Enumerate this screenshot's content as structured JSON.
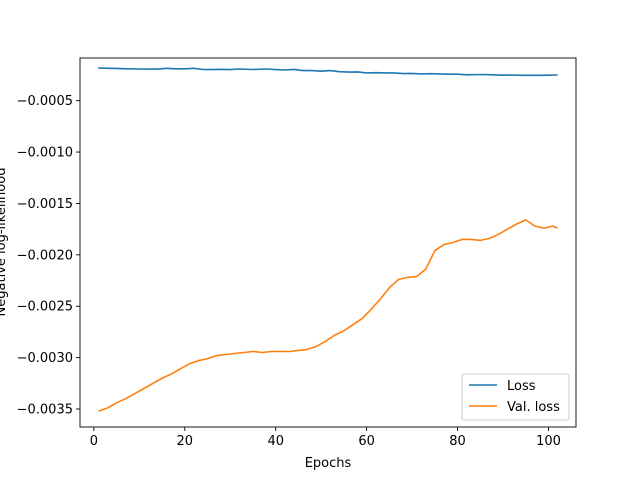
{
  "chart_data": {
    "type": "line",
    "title": "",
    "xlabel": "Epochs",
    "ylabel": "Negative log-likelihood",
    "xlim": [
      -3.05,
      106.05
    ],
    "ylim": [
      -0.003675,
      -8.5e-05
    ],
    "xticks": [
      0,
      20,
      40,
      60,
      80,
      100
    ],
    "xtick_labels": [
      "0",
      "20",
      "40",
      "60",
      "80",
      "100"
    ],
    "yticks": [
      -0.0035,
      -0.003,
      -0.0025,
      -0.002,
      -0.0015,
      -0.001,
      -0.0005
    ],
    "ytick_labels": [
      "−0.0035",
      "−0.0030",
      "−0.0025",
      "−0.0020",
      "−0.0015",
      "−0.0010",
      "−0.0005"
    ],
    "grid": false,
    "legend": {
      "position": "lower-right",
      "entries": [
        "Loss",
        "Val. loss"
      ]
    },
    "series": [
      {
        "name": "Loss",
        "color": "#1f77b4",
        "points": [
          [
            1,
            -0.000183
          ],
          [
            5,
            -0.000186
          ],
          [
            7,
            -0.00019
          ],
          [
            10,
            -0.000192
          ],
          [
            12,
            -0.000193
          ],
          [
            14,
            -0.000193
          ],
          [
            16,
            -0.000185
          ],
          [
            18,
            -0.00019
          ],
          [
            20,
            -0.00019
          ],
          [
            22,
            -0.000185
          ],
          [
            24,
            -0.000197
          ],
          [
            26,
            -0.000198
          ],
          [
            28,
            -0.000195
          ],
          [
            30,
            -0.000198
          ],
          [
            32,
            -0.000192
          ],
          [
            35,
            -0.000197
          ],
          [
            38,
            -0.000192
          ],
          [
            40,
            -0.000198
          ],
          [
            42,
            -0.000202
          ],
          [
            44,
            -0.000196
          ],
          [
            46,
            -0.000208
          ],
          [
            48,
            -0.000208
          ],
          [
            50,
            -0.000213
          ],
          [
            52,
            -0.000208
          ],
          [
            54,
            -0.000218
          ],
          [
            56,
            -0.000222
          ],
          [
            58,
            -0.00022
          ],
          [
            60,
            -0.00023
          ],
          [
            62,
            -0.000228
          ],
          [
            64,
            -0.00023
          ],
          [
            66,
            -0.00023
          ],
          [
            68,
            -0.000237
          ],
          [
            70,
            -0.000235
          ],
          [
            72,
            -0.00024
          ],
          [
            74,
            -0.000238
          ],
          [
            76,
            -0.00024
          ],
          [
            78,
            -0.000243
          ],
          [
            80,
            -0.000243
          ],
          [
            82,
            -0.000248
          ],
          [
            85,
            -0.000246
          ],
          [
            88,
            -0.000248
          ],
          [
            90,
            -0.000252
          ],
          [
            92,
            -0.00025
          ],
          [
            94,
            -0.000253
          ],
          [
            96,
            -0.000253
          ],
          [
            98,
            -0.000253
          ],
          [
            100,
            -0.000252
          ],
          [
            102,
            -0.00025
          ]
        ]
      },
      {
        "name": "Val. loss",
        "color": "#ff7f0e",
        "points": [
          [
            1,
            -0.00352
          ],
          [
            3,
            -0.00349
          ],
          [
            5,
            -0.00344
          ],
          [
            7,
            -0.0034
          ],
          [
            9,
            -0.00335
          ],
          [
            11,
            -0.0033
          ],
          [
            13,
            -0.00325
          ],
          [
            15,
            -0.0032
          ],
          [
            17,
            -0.00316
          ],
          [
            19,
            -0.00311
          ],
          [
            21,
            -0.00306
          ],
          [
            23,
            -0.00303
          ],
          [
            25,
            -0.00301
          ],
          [
            27,
            -0.00298
          ],
          [
            29,
            -0.00297
          ],
          [
            31,
            -0.00296
          ],
          [
            33,
            -0.00295
          ],
          [
            35,
            -0.00294
          ],
          [
            37,
            -0.00295
          ],
          [
            39,
            -0.00294
          ],
          [
            41,
            -0.00294
          ],
          [
            43,
            -0.00294
          ],
          [
            45,
            -0.00293
          ],
          [
            47,
            -0.00292
          ],
          [
            49,
            -0.00289
          ],
          [
            51,
            -0.00284
          ],
          [
            53,
            -0.00278
          ],
          [
            55,
            -0.00274
          ],
          [
            57,
            -0.00268
          ],
          [
            59,
            -0.00262
          ],
          [
            61,
            -0.00253
          ],
          [
            63,
            -0.00243
          ],
          [
            65,
            -0.00232
          ],
          [
            67,
            -0.00224
          ],
          [
            69,
            -0.00222
          ],
          [
            71,
            -0.00221
          ],
          [
            73,
            -0.00214
          ],
          [
            75,
            -0.00196
          ],
          [
            77,
            -0.0019
          ],
          [
            79,
            -0.00188
          ],
          [
            81,
            -0.00185
          ],
          [
            83,
            -0.00185
          ],
          [
            85,
            -0.00186
          ],
          [
            87,
            -0.00184
          ],
          [
            89,
            -0.0018
          ],
          [
            91,
            -0.00175
          ],
          [
            93,
            -0.0017
          ],
          [
            95,
            -0.00166
          ],
          [
            97,
            -0.00172
          ],
          [
            99,
            -0.00174
          ],
          [
            101,
            -0.00172
          ],
          [
            102,
            -0.00174
          ]
        ]
      }
    ]
  }
}
